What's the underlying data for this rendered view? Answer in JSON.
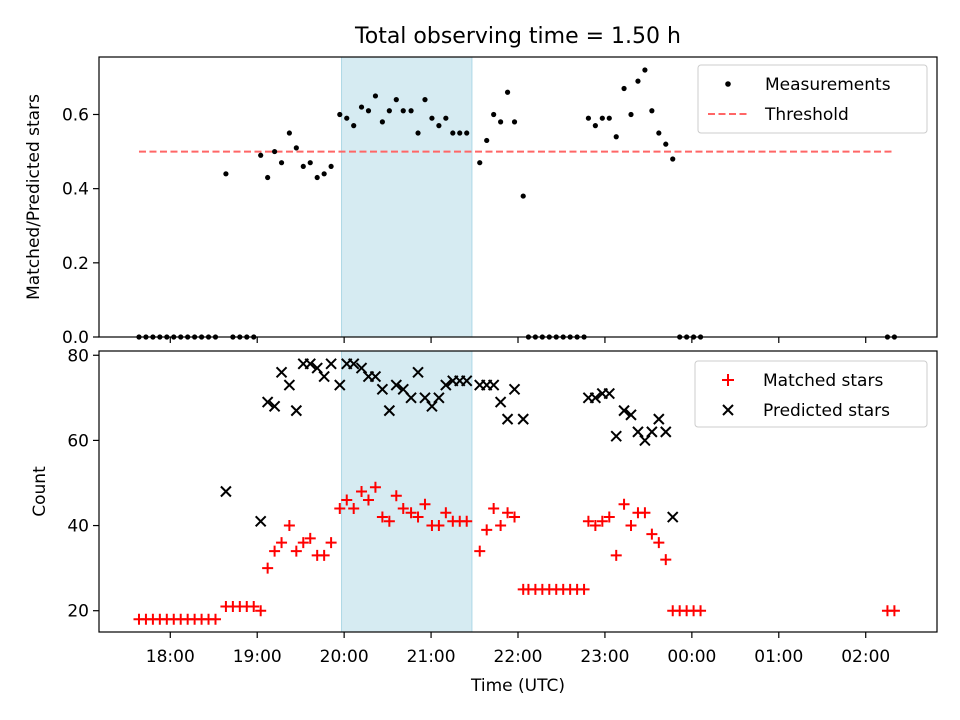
{
  "figure": {
    "title": "Total observing time = 1.50 h"
  },
  "colors": {
    "background": "#ffffff",
    "axes": "#000000",
    "highlight_span": "#add8e6",
    "threshold": "#ff6666",
    "measurements": "#000000",
    "matched": "#ff0000",
    "predicted": "#000000"
  },
  "chart_data": [
    {
      "type": "scatter",
      "panel": "top",
      "title": "Total observing time = 1.50 h",
      "xlabel": "",
      "ylabel": "Matched/Predicted stars",
      "x_unit": "hours since 18:00 UTC",
      "xlim": [
        -0.82,
        8.82
      ],
      "ylim": [
        0.0,
        0.755
      ],
      "yticks": [
        0.0,
        0.2,
        0.4,
        0.6
      ],
      "ytick_labels": [
        "0.0",
        "0.2",
        "0.4",
        "0.6"
      ],
      "grid": false,
      "legend": {
        "placement": "upper right",
        "entries": [
          "Measurements",
          "Threshold"
        ]
      },
      "highlight_span": [
        1.97,
        3.47
      ],
      "threshold": {
        "name": "Threshold",
        "value": 0.5,
        "x_range": [
          -0.36,
          8.33
        ],
        "style": "dashed"
      },
      "series": [
        {
          "name": "Measurements",
          "marker": "dot",
          "points": [
            [
              -0.36,
              0.0
            ],
            [
              -0.28,
              0.0
            ],
            [
              -0.2,
              0.0
            ],
            [
              -0.12,
              0.0
            ],
            [
              -0.04,
              0.0
            ],
            [
              0.04,
              0.0
            ],
            [
              0.12,
              0.0
            ],
            [
              0.2,
              0.0
            ],
            [
              0.28,
              0.0
            ],
            [
              0.36,
              0.0
            ],
            [
              0.44,
              0.0
            ],
            [
              0.52,
              0.0
            ],
            [
              0.64,
              0.44
            ],
            [
              0.72,
              0.0
            ],
            [
              0.8,
              0.0
            ],
            [
              0.88,
              0.0
            ],
            [
              0.96,
              0.0
            ],
            [
              1.04,
              0.49
            ],
            [
              1.12,
              0.43
            ],
            [
              1.2,
              0.5
            ],
            [
              1.28,
              0.47
            ],
            [
              1.37,
              0.55
            ],
            [
              1.45,
              0.51
            ],
            [
              1.53,
              0.46
            ],
            [
              1.61,
              0.47
            ],
            [
              1.69,
              0.43
            ],
            [
              1.77,
              0.44
            ],
            [
              1.85,
              0.46
            ],
            [
              1.95,
              0.6
            ],
            [
              2.03,
              0.59
            ],
            [
              2.11,
              0.57
            ],
            [
              2.2,
              0.62
            ],
            [
              2.28,
              0.61
            ],
            [
              2.36,
              0.65
            ],
            [
              2.44,
              0.58
            ],
            [
              2.52,
              0.61
            ],
            [
              2.6,
              0.64
            ],
            [
              2.68,
              0.61
            ],
            [
              2.77,
              0.61
            ],
            [
              2.85,
              0.55
            ],
            [
              2.93,
              0.64
            ],
            [
              3.01,
              0.59
            ],
            [
              3.09,
              0.57
            ],
            [
              3.17,
              0.59
            ],
            [
              3.25,
              0.55
            ],
            [
              3.33,
              0.55
            ],
            [
              3.41,
              0.55
            ],
            [
              3.56,
              0.47
            ],
            [
              3.64,
              0.53
            ],
            [
              3.72,
              0.6
            ],
            [
              3.8,
              0.58
            ],
            [
              3.88,
              0.66
            ],
            [
              3.96,
              0.58
            ],
            [
              4.06,
              0.38
            ],
            [
              4.12,
              0.0
            ],
            [
              4.2,
              0.0
            ],
            [
              4.28,
              0.0
            ],
            [
              4.36,
              0.0
            ],
            [
              4.44,
              0.0
            ],
            [
              4.52,
              0.0
            ],
            [
              4.6,
              0.0
            ],
            [
              4.68,
              0.0
            ],
            [
              4.76,
              0.0
            ],
            [
              4.81,
              0.59
            ],
            [
              4.89,
              0.57
            ],
            [
              4.97,
              0.59
            ],
            [
              5.05,
              0.59
            ],
            [
              5.13,
              0.54
            ],
            [
              5.22,
              0.67
            ],
            [
              5.3,
              0.6
            ],
            [
              5.38,
              0.69
            ],
            [
              5.46,
              0.72
            ],
            [
              5.54,
              0.61
            ],
            [
              5.62,
              0.55
            ],
            [
              5.7,
              0.52
            ],
            [
              5.78,
              0.48
            ],
            [
              5.86,
              0.0
            ],
            [
              5.94,
              0.0
            ],
            [
              6.02,
              0.0
            ],
            [
              6.1,
              0.0
            ],
            [
              8.25,
              0.0
            ],
            [
              8.33,
              0.0
            ]
          ]
        }
      ]
    },
    {
      "type": "scatter",
      "panel": "bottom",
      "xlabel": "Time (UTC)",
      "ylabel": "Count",
      "x_unit": "hours since 18:00 UTC",
      "xlim": [
        -0.82,
        8.82
      ],
      "ylim": [
        15,
        81
      ],
      "xticks": [
        0,
        1,
        2,
        3,
        4,
        5,
        6,
        7,
        8
      ],
      "xtick_labels": [
        "18:00",
        "19:00",
        "20:00",
        "21:00",
        "22:00",
        "23:00",
        "00:00",
        "01:00",
        "02:00"
      ],
      "yticks": [
        20,
        40,
        60,
        80
      ],
      "ytick_labels": [
        "20",
        "40",
        "60",
        "80"
      ],
      "grid": false,
      "legend": {
        "placement": "upper right",
        "entries": [
          "Matched stars",
          "Predicted stars"
        ]
      },
      "highlight_span": [
        1.97,
        3.47
      ],
      "series": [
        {
          "name": "Matched stars",
          "marker": "plus",
          "points": [
            [
              -0.36,
              18
            ],
            [
              -0.28,
              18
            ],
            [
              -0.2,
              18
            ],
            [
              -0.12,
              18
            ],
            [
              -0.04,
              18
            ],
            [
              0.04,
              18
            ],
            [
              0.12,
              18
            ],
            [
              0.2,
              18
            ],
            [
              0.28,
              18
            ],
            [
              0.36,
              18
            ],
            [
              0.44,
              18
            ],
            [
              0.52,
              18
            ],
            [
              0.64,
              21
            ],
            [
              0.72,
              21
            ],
            [
              0.8,
              21
            ],
            [
              0.88,
              21
            ],
            [
              0.96,
              21
            ],
            [
              1.04,
              20
            ],
            [
              1.12,
              30
            ],
            [
              1.2,
              34
            ],
            [
              1.28,
              36
            ],
            [
              1.37,
              40
            ],
            [
              1.45,
              34
            ],
            [
              1.53,
              36
            ],
            [
              1.61,
              37
            ],
            [
              1.69,
              33
            ],
            [
              1.77,
              33
            ],
            [
              1.85,
              36
            ],
            [
              1.95,
              44
            ],
            [
              2.03,
              46
            ],
            [
              2.11,
              44
            ],
            [
              2.2,
              48
            ],
            [
              2.28,
              46
            ],
            [
              2.36,
              49
            ],
            [
              2.44,
              42
            ],
            [
              2.52,
              41
            ],
            [
              2.6,
              47
            ],
            [
              2.68,
              44
            ],
            [
              2.77,
              43
            ],
            [
              2.85,
              42
            ],
            [
              2.93,
              45
            ],
            [
              3.01,
              40
            ],
            [
              3.09,
              40
            ],
            [
              3.17,
              43
            ],
            [
              3.25,
              41
            ],
            [
              3.33,
              41
            ],
            [
              3.41,
              41
            ],
            [
              3.56,
              34
            ],
            [
              3.64,
              39
            ],
            [
              3.72,
              44
            ],
            [
              3.8,
              40
            ],
            [
              3.88,
              43
            ],
            [
              3.96,
              42
            ],
            [
              4.06,
              25
            ],
            [
              4.12,
              25
            ],
            [
              4.2,
              25
            ],
            [
              4.28,
              25
            ],
            [
              4.36,
              25
            ],
            [
              4.44,
              25
            ],
            [
              4.52,
              25
            ],
            [
              4.6,
              25
            ],
            [
              4.68,
              25
            ],
            [
              4.76,
              25
            ],
            [
              4.81,
              41
            ],
            [
              4.89,
              40
            ],
            [
              4.97,
              41
            ],
            [
              5.05,
              42
            ],
            [
              5.13,
              33
            ],
            [
              5.22,
              45
            ],
            [
              5.3,
              40
            ],
            [
              5.38,
              43
            ],
            [
              5.46,
              43
            ],
            [
              5.54,
              38
            ],
            [
              5.62,
              36
            ],
            [
              5.7,
              32
            ],
            [
              5.78,
              20
            ],
            [
              5.86,
              20
            ],
            [
              5.94,
              20
            ],
            [
              6.02,
              20
            ],
            [
              6.1,
              20
            ],
            [
              8.25,
              20
            ],
            [
              8.33,
              20
            ]
          ]
        },
        {
          "name": "Predicted stars",
          "marker": "x",
          "points": [
            [
              0.64,
              48
            ],
            [
              1.04,
              41
            ],
            [
              1.12,
              69
            ],
            [
              1.2,
              68
            ],
            [
              1.28,
              76
            ],
            [
              1.37,
              73
            ],
            [
              1.45,
              67
            ],
            [
              1.53,
              78
            ],
            [
              1.61,
              78
            ],
            [
              1.69,
              77
            ],
            [
              1.77,
              75
            ],
            [
              1.85,
              78
            ],
            [
              1.95,
              73
            ],
            [
              2.03,
              78
            ],
            [
              2.11,
              78
            ],
            [
              2.2,
              77
            ],
            [
              2.28,
              75
            ],
            [
              2.36,
              75
            ],
            [
              2.44,
              72
            ],
            [
              2.52,
              67
            ],
            [
              2.6,
              73
            ],
            [
              2.68,
              72
            ],
            [
              2.77,
              70
            ],
            [
              2.85,
              76
            ],
            [
              2.93,
              70
            ],
            [
              3.01,
              68
            ],
            [
              3.09,
              70
            ],
            [
              3.17,
              73
            ],
            [
              3.25,
              74
            ],
            [
              3.33,
              74
            ],
            [
              3.41,
              74
            ],
            [
              3.56,
              73
            ],
            [
              3.64,
              73
            ],
            [
              3.72,
              73
            ],
            [
              3.8,
              69
            ],
            [
              3.88,
              65
            ],
            [
              3.96,
              72
            ],
            [
              4.06,
              65
            ],
            [
              4.81,
              70
            ],
            [
              4.89,
              70
            ],
            [
              4.97,
              71
            ],
            [
              5.05,
              71
            ],
            [
              5.13,
              61
            ],
            [
              5.22,
              67
            ],
            [
              5.3,
              66
            ],
            [
              5.38,
              62
            ],
            [
              5.46,
              60
            ],
            [
              5.54,
              62
            ],
            [
              5.62,
              65
            ],
            [
              5.7,
              62
            ],
            [
              5.78,
              42
            ]
          ]
        }
      ]
    }
  ]
}
